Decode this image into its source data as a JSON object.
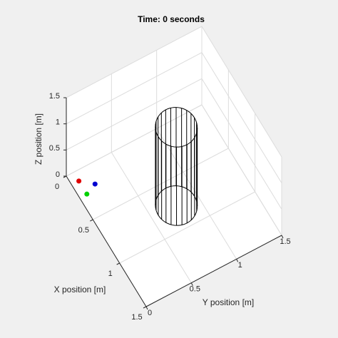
{
  "chart_data": {
    "type": "scatter3d",
    "title": "Time: 0 seconds",
    "xlabel": "X position [m]",
    "ylabel": "Y position [m]",
    "zlabel": "Z position [m]",
    "xlim": [
      0,
      1.5
    ],
    "ylim": [
      0,
      1.5
    ],
    "zlim": [
      0,
      1.5
    ],
    "xticks": [
      0,
      0.5,
      1,
      1.5
    ],
    "yticks": [
      0,
      0.5,
      1,
      1.5
    ],
    "zticks": [
      0,
      0.5,
      1,
      1.5
    ],
    "grid": true,
    "points": {
      "x": [
        0.1,
        0.2,
        0.25
      ],
      "y": [
        0.08,
        0.2,
        0.08
      ],
      "z": [
        0,
        0,
        0
      ],
      "colors": [
        "#e00000",
        "#0000d0",
        "#00d000"
      ]
    },
    "cylinder": {
      "center": [
        0.76,
        0.77
      ],
      "radius": 0.2,
      "height": 1.5,
      "color": "#000000"
    }
  }
}
